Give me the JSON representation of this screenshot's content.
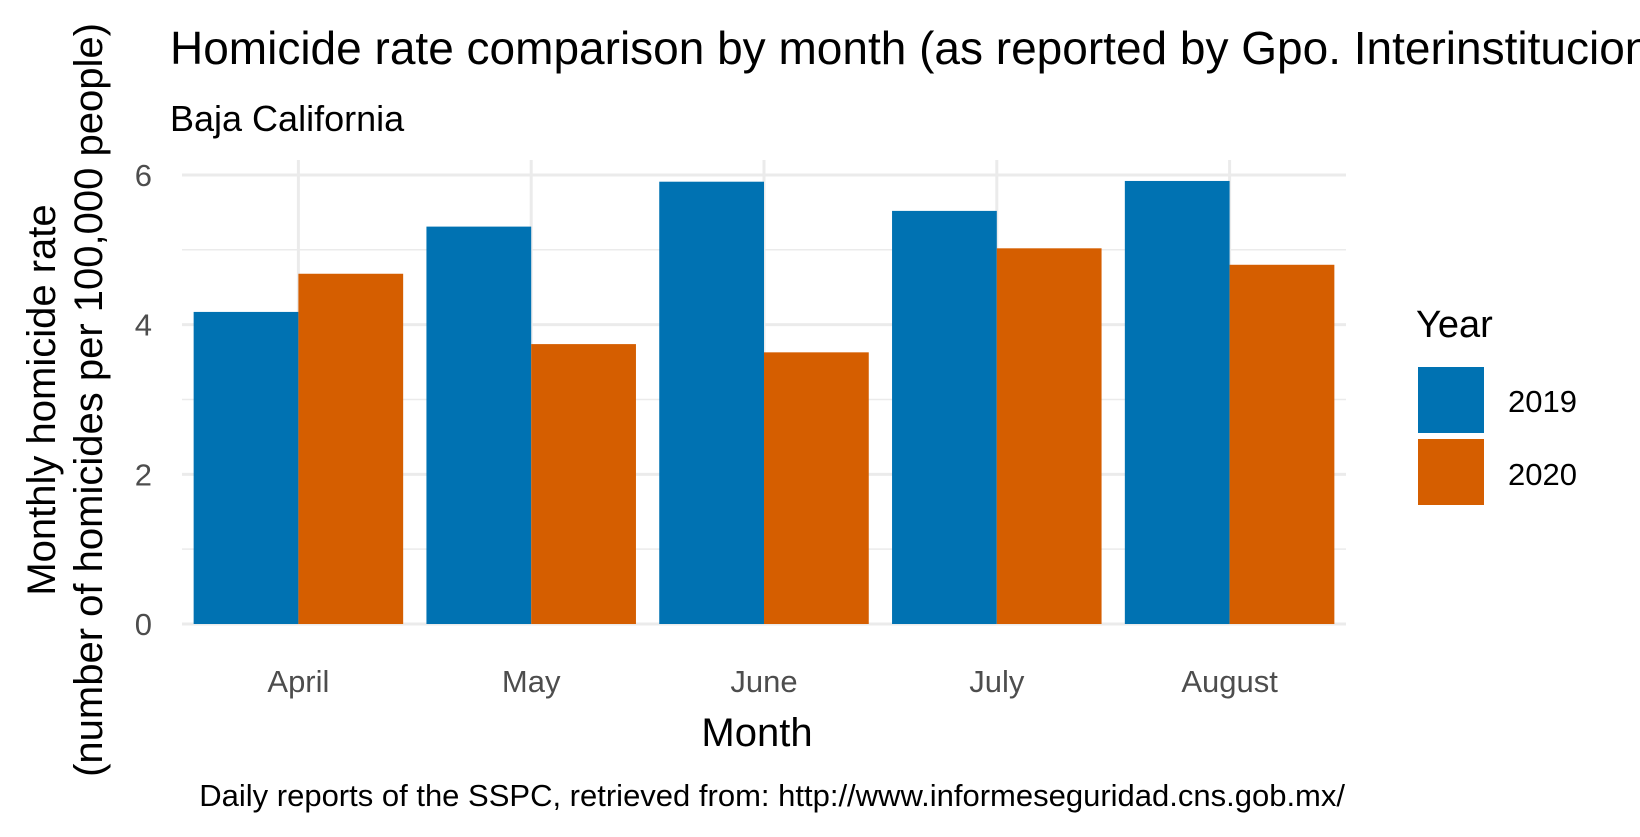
{
  "chart_data": {
    "type": "bar",
    "title": "Homicide rate comparison by month (as reported by Gpo. Interinstitucional)",
    "subtitle": "Baja California",
    "xlabel": "Month",
    "ylabel_line1": "Monthly homicide rate",
    "ylabel_line2": "(number of homicides per 100,000 people)",
    "caption": "Daily reports of the SSPC, retrieved from: http://www.informeseguridad.cns.gob.mx/",
    "categories": [
      "April",
      "May",
      "June",
      "July",
      "August"
    ],
    "series": [
      {
        "name": "2019",
        "color": "#0072b2",
        "values": [
          4.17,
          5.31,
          5.91,
          5.52,
          5.92
        ]
      },
      {
        "name": "2020",
        "color": "#d55e00",
        "values": [
          4.68,
          3.74,
          3.63,
          5.02,
          4.8
        ]
      }
    ],
    "ylim": [
      0,
      6.2
    ],
    "yticks": [
      0,
      2,
      4,
      6
    ],
    "legend": {
      "title": "Year",
      "position": "right"
    },
    "grid": true
  }
}
